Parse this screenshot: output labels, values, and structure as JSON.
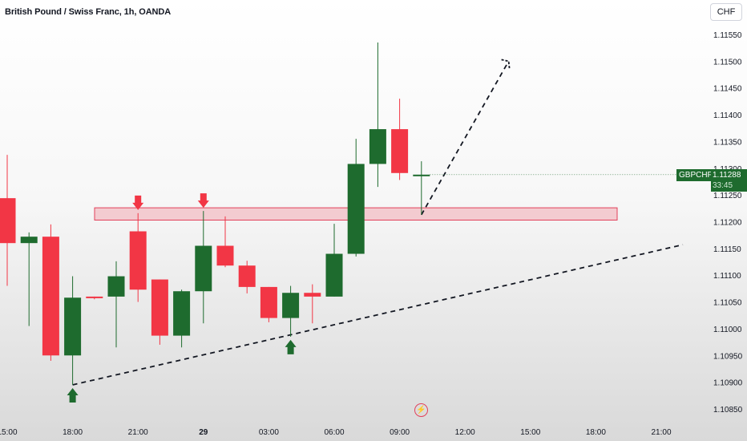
{
  "header": {
    "title": "British Pound / Swiss Franc, 1h, OANDA",
    "currency_button": "CHF"
  },
  "price_tag": {
    "symbol": "GBPCHF",
    "price": "1.11288",
    "countdown": "33:45"
  },
  "colors": {
    "bull": "#1e6b2e",
    "bear": "#f23645",
    "zone_fill": "#f3c1c7",
    "zone_stroke": "#e2405a"
  },
  "icons": {
    "flash": "lightning-icon"
  },
  "chart_data": {
    "type": "candlestick",
    "title": "British Pound / Swiss Franc, 1h, OANDA",
    "y_axis": {
      "ticks": [
        "1.11550",
        "1.11500",
        "1.11450",
        "1.11400",
        "1.11350",
        "1.11300",
        "1.11250",
        "1.11200",
        "1.11150",
        "1.11100",
        "1.11050",
        "1.11000",
        "1.10950",
        "1.10900",
        "1.10850"
      ],
      "range": [
        1.10835,
        1.11575
      ],
      "position": "right"
    },
    "x_axis": {
      "ticks": [
        {
          "label": "15:00",
          "bold": false
        },
        {
          "label": "18:00",
          "bold": false
        },
        {
          "label": "21:00",
          "bold": false
        },
        {
          "label": "29",
          "bold": true
        },
        {
          "label": "03:00",
          "bold": false
        },
        {
          "label": "06:00",
          "bold": false
        },
        {
          "label": "09:00",
          "bold": false
        },
        {
          "label": "12:00",
          "bold": false
        },
        {
          "label": "15:00",
          "bold": false
        },
        {
          "label": "18:00",
          "bold": false
        },
        {
          "label": "21:00",
          "bold": false
        }
      ],
      "unit": "hour",
      "tick_every_hours": 3
    },
    "candles": [
      {
        "time": "15:00",
        "o": 1.11244,
        "h": 1.11325,
        "l": 1.1108,
        "c": 1.1116
      },
      {
        "time": "16:00",
        "o": 1.1116,
        "h": 1.1118,
        "l": 1.11005,
        "c": 1.11172
      },
      {
        "time": "17:00",
        "o": 1.11172,
        "h": 1.11195,
        "l": 1.1094,
        "c": 1.1095
      },
      {
        "time": "18:00",
        "o": 1.1095,
        "h": 1.11098,
        "l": 1.10895,
        "c": 1.11058
      },
      {
        "time": "19:00",
        "o": 1.1106,
        "h": 1.1106,
        "l": 1.11055,
        "c": 1.11058
      },
      {
        "time": "20:00",
        "o": 1.1106,
        "h": 1.11126,
        "l": 1.10965,
        "c": 1.11098
      },
      {
        "time": "21:00",
        "o": 1.11182,
        "h": 1.11216,
        "l": 1.1105,
        "c": 1.11073
      },
      {
        "time": "22:00",
        "o": 1.11092,
        "h": 1.11092,
        "l": 1.1097,
        "c": 1.10987
      },
      {
        "time": "23:00",
        "o": 1.10987,
        "h": 1.11073,
        "l": 1.10965,
        "c": 1.1107
      },
      {
        "time": "00:00",
        "o": 1.1107,
        "h": 1.1122,
        "l": 1.1101,
        "c": 1.11155
      },
      {
        "time": "01:00",
        "o": 1.11155,
        "h": 1.1121,
        "l": 1.11115,
        "c": 1.11118
      },
      {
        "time": "02:00",
        "o": 1.11118,
        "h": 1.11127,
        "l": 1.11066,
        "c": 1.11078
      },
      {
        "time": "03:00",
        "o": 1.11078,
        "h": 1.11078,
        "l": 1.11012,
        "c": 1.1102
      },
      {
        "time": "04:00",
        "o": 1.1102,
        "h": 1.1108,
        "l": 1.10985,
        "c": 1.11067
      },
      {
        "time": "05:00",
        "o": 1.11067,
        "h": 1.11083,
        "l": 1.1101,
        "c": 1.1106
      },
      {
        "time": "06:00",
        "o": 1.1106,
        "h": 1.11196,
        "l": 1.1106,
        "c": 1.1114
      },
      {
        "time": "07:00",
        "o": 1.1114,
        "h": 1.11355,
        "l": 1.11135,
        "c": 1.11308
      },
      {
        "time": "08:00",
        "o": 1.11308,
        "h": 1.11535,
        "l": 1.11265,
        "c": 1.11373
      },
      {
        "time": "09:00",
        "o": 1.11373,
        "h": 1.1143,
        "l": 1.11278,
        "c": 1.11291
      },
      {
        "time": "10:00",
        "o": 1.11288,
        "h": 1.11313,
        "l": 1.11213,
        "c": 1.11288
      }
    ],
    "support_zone": {
      "from_time": "19:00",
      "to_time": "15:00",
      "low": 1.11203,
      "high": 1.11226
    },
    "trendline": {
      "points": [
        {
          "time": "18:00",
          "price": 1.10895
        },
        {
          "time": "18:00",
          "price": 1.11157,
          "day": 2
        }
      ]
    },
    "projection": {
      "points": [
        {
          "time": "10:00",
          "price": 1.11213
        },
        {
          "time": "14:00",
          "price": 1.115
        }
      ]
    },
    "markers": [
      {
        "type": "arrow-down",
        "time": "21:00",
        "color": "bear"
      },
      {
        "type": "arrow-down",
        "time": "00:00",
        "color": "bear"
      },
      {
        "type": "arrow-up",
        "time": "18:00",
        "color": "bull"
      },
      {
        "type": "arrow-up",
        "time": "04:00",
        "color": "bull"
      }
    ]
  }
}
